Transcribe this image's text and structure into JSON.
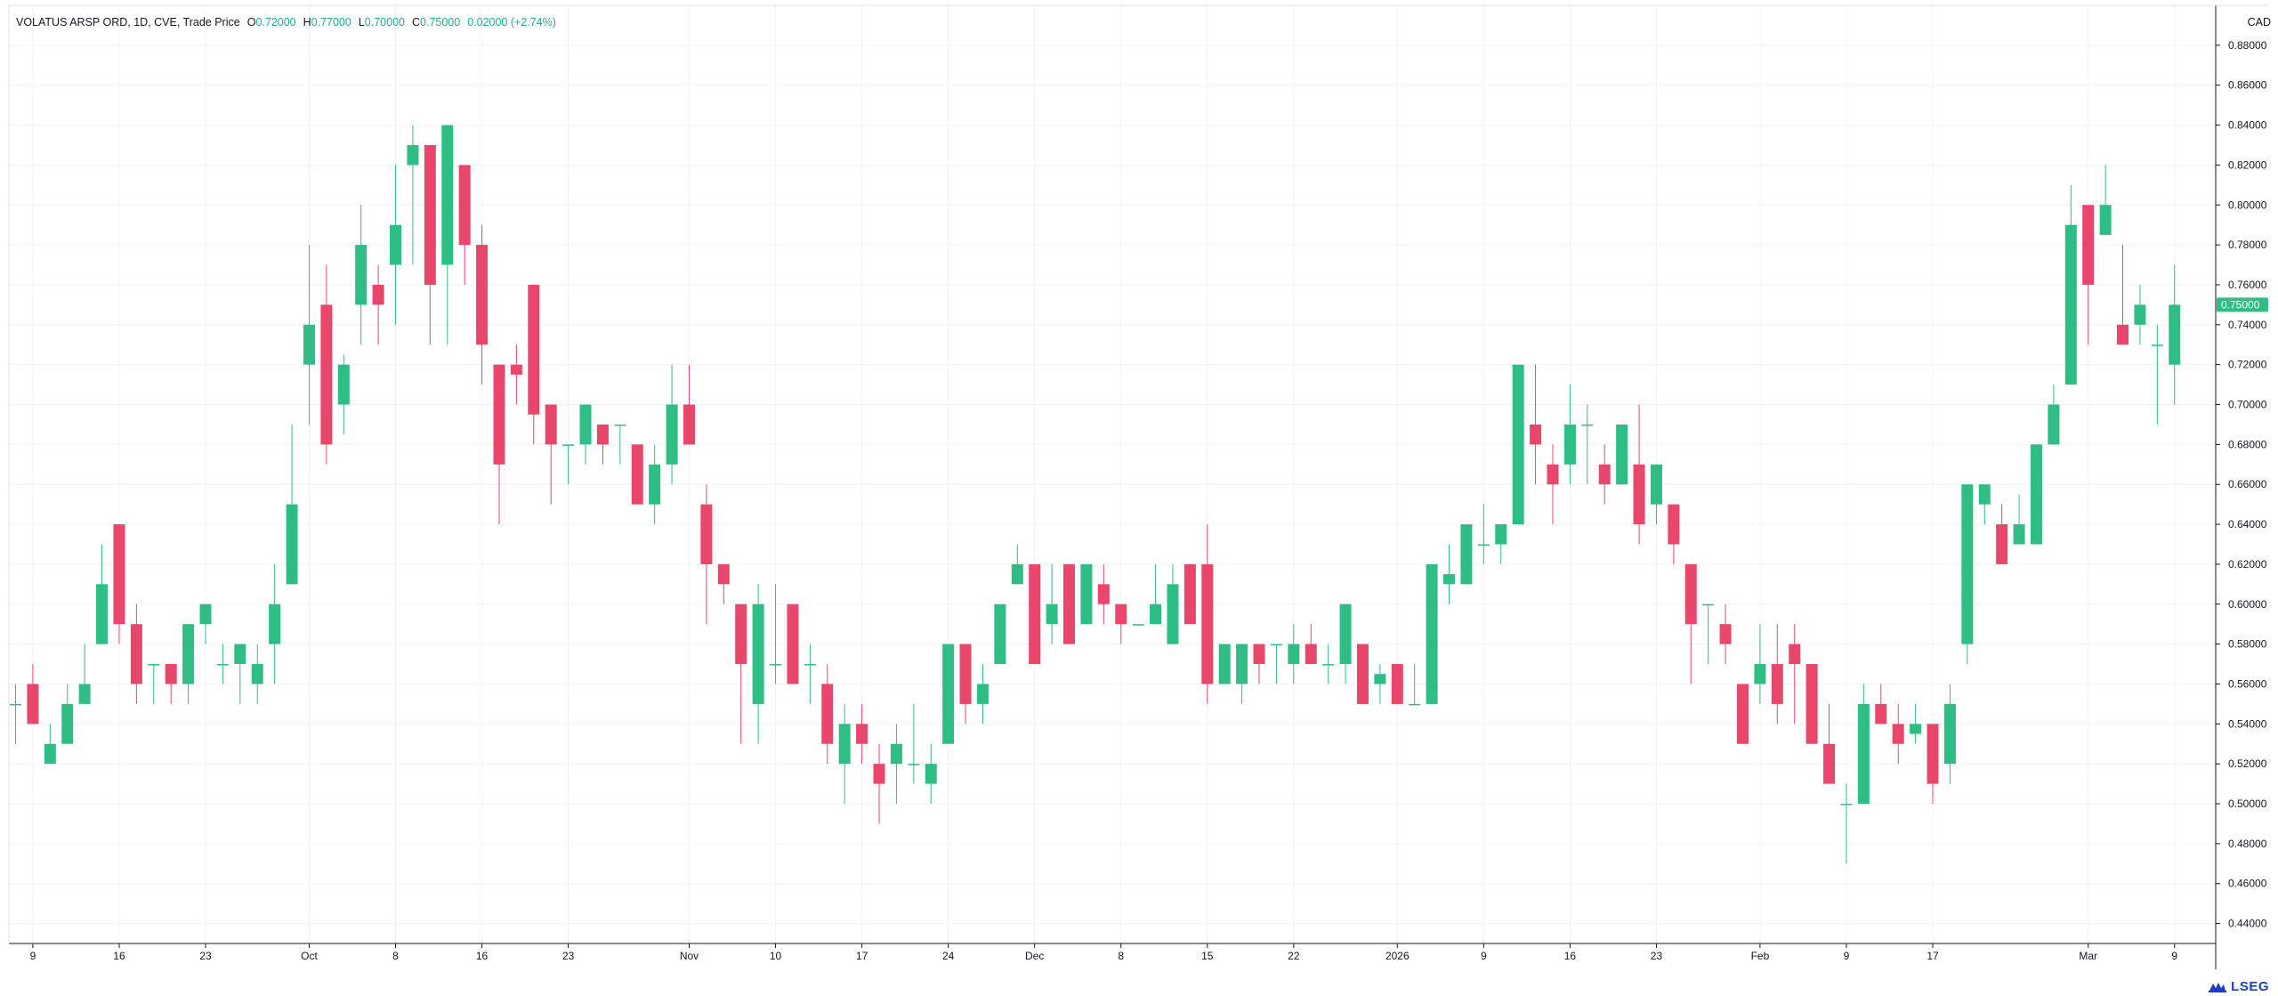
{
  "legend": {
    "symbol": "VOLATUS ARSP ORD, 1D, CVE, Trade Price",
    "open_key": "O",
    "open": "0.72000",
    "high_key": "H",
    "high": "0.77000",
    "low_key": "L",
    "low": "0.70000",
    "close_key": "C",
    "close": "0.75000",
    "change": "0.02000 (+2.74%)"
  },
  "currency": "CAD",
  "logo_text": "LSEG",
  "colors": {
    "up": "#2ebd85",
    "down": "#e8466a",
    "grid": "#f0f3fa",
    "axis": "#131722",
    "price_label_bg": "#2ebd85"
  },
  "chart_data": {
    "type": "candlestick",
    "title": "",
    "ylim": [
      0.43,
      0.9
    ],
    "y_ticks": [
      "0.44000",
      "0.46000",
      "0.48000",
      "0.50000",
      "0.52000",
      "0.54000",
      "0.56000",
      "0.58000",
      "0.60000",
      "0.62000",
      "0.64000",
      "0.66000",
      "0.68000",
      "0.70000",
      "0.72000",
      "0.74000",
      "0.76000",
      "0.78000",
      "0.80000",
      "0.82000",
      "0.84000",
      "0.86000",
      "0.88000"
    ],
    "x_ticks": [
      {
        "label": "9",
        "index": 1
      },
      {
        "label": "16",
        "index": 6
      },
      {
        "label": "23",
        "index": 11
      },
      {
        "label": "Oct",
        "index": 17
      },
      {
        "label": "8",
        "index": 22
      },
      {
        "label": "16",
        "index": 27
      },
      {
        "label": "23",
        "index": 32
      },
      {
        "label": "Nov",
        "index": 39
      },
      {
        "label": "10",
        "index": 44
      },
      {
        "label": "17",
        "index": 49
      },
      {
        "label": "24",
        "index": 54
      },
      {
        "label": "Dec",
        "index": 59
      },
      {
        "label": "8",
        "index": 64
      },
      {
        "label": "15",
        "index": 69
      },
      {
        "label": "22",
        "index": 74
      },
      {
        "label": "2026",
        "index": 80
      },
      {
        "label": "9",
        "index": 85
      },
      {
        "label": "16",
        "index": 90
      },
      {
        "label": "23",
        "index": 95
      },
      {
        "label": "Feb",
        "index": 101
      },
      {
        "label": "9",
        "index": 106
      },
      {
        "label": "17",
        "index": 111
      },
      {
        "label": "Mar",
        "index": 120
      },
      {
        "label": "9",
        "index": 125
      }
    ],
    "last_price": "0.75000",
    "candles": [
      [
        0.55,
        0.56,
        0.53,
        0.55
      ],
      [
        0.56,
        0.57,
        0.54,
        0.54
      ],
      [
        0.52,
        0.54,
        0.52,
        0.53
      ],
      [
        0.53,
        0.56,
        0.53,
        0.55
      ],
      [
        0.55,
        0.58,
        0.55,
        0.56
      ],
      [
        0.58,
        0.63,
        0.58,
        0.61
      ],
      [
        0.64,
        0.64,
        0.58,
        0.59
      ],
      [
        0.59,
        0.6,
        0.55,
        0.56
      ],
      [
        0.57,
        0.57,
        0.55,
        0.57
      ],
      [
        0.57,
        0.57,
        0.55,
        0.56
      ],
      [
        0.56,
        0.59,
        0.55,
        0.59
      ],
      [
        0.59,
        0.6,
        0.58,
        0.6
      ],
      [
        0.57,
        0.58,
        0.56,
        0.57
      ],
      [
        0.57,
        0.58,
        0.55,
        0.58
      ],
      [
        0.56,
        0.58,
        0.55,
        0.57
      ],
      [
        0.58,
        0.62,
        0.56,
        0.6
      ],
      [
        0.61,
        0.69,
        0.61,
        0.65
      ],
      [
        0.72,
        0.78,
        0.69,
        0.74
      ],
      [
        0.75,
        0.77,
        0.67,
        0.68
      ],
      [
        0.7,
        0.725,
        0.685,
        0.72
      ],
      [
        0.75,
        0.8,
        0.73,
        0.78
      ],
      [
        0.76,
        0.77,
        0.73,
        0.75
      ],
      [
        0.77,
        0.82,
        0.74,
        0.79
      ],
      [
        0.82,
        0.84,
        0.77,
        0.83
      ],
      [
        0.83,
        0.83,
        0.73,
        0.76
      ],
      [
        0.77,
        0.84,
        0.73,
        0.84
      ],
      [
        0.82,
        0.82,
        0.76,
        0.78
      ],
      [
        0.78,
        0.79,
        0.71,
        0.73
      ],
      [
        0.72,
        0.72,
        0.64,
        0.67
      ],
      [
        0.72,
        0.73,
        0.7,
        0.715
      ],
      [
        0.76,
        0.76,
        0.68,
        0.695
      ],
      [
        0.7,
        0.7,
        0.65,
        0.68
      ],
      [
        0.68,
        0.68,
        0.66,
        0.68
      ],
      [
        0.68,
        0.7,
        0.67,
        0.7
      ],
      [
        0.69,
        0.69,
        0.67,
        0.68
      ],
      [
        0.69,
        0.69,
        0.67,
        0.69
      ],
      [
        0.68,
        0.68,
        0.65,
        0.65
      ],
      [
        0.65,
        0.68,
        0.64,
        0.67
      ],
      [
        0.67,
        0.72,
        0.66,
        0.7
      ],
      [
        0.7,
        0.72,
        0.68,
        0.68
      ],
      [
        0.65,
        0.66,
        0.59,
        0.62
      ],
      [
        0.62,
        0.62,
        0.6,
        0.61
      ],
      [
        0.6,
        0.6,
        0.53,
        0.57
      ],
      [
        0.55,
        0.61,
        0.53,
        0.6
      ],
      [
        0.57,
        0.61,
        0.56,
        0.57
      ],
      [
        0.6,
        0.6,
        0.56,
        0.56
      ],
      [
        0.57,
        0.58,
        0.55,
        0.57
      ],
      [
        0.56,
        0.57,
        0.52,
        0.53
      ],
      [
        0.52,
        0.55,
        0.5,
        0.54
      ],
      [
        0.54,
        0.55,
        0.52,
        0.53
      ],
      [
        0.52,
        0.53,
        0.49,
        0.51
      ],
      [
        0.52,
        0.54,
        0.5,
        0.53
      ],
      [
        0.52,
        0.55,
        0.51,
        0.52
      ],
      [
        0.51,
        0.53,
        0.5,
        0.52
      ],
      [
        0.53,
        0.58,
        0.53,
        0.58
      ],
      [
        0.58,
        0.58,
        0.54,
        0.55
      ],
      [
        0.55,
        0.57,
        0.54,
        0.56
      ],
      [
        0.57,
        0.6,
        0.57,
        0.6
      ],
      [
        0.61,
        0.63,
        0.61,
        0.62
      ],
      [
        0.62,
        0.62,
        0.57,
        0.57
      ],
      [
        0.59,
        0.62,
        0.58,
        0.6
      ],
      [
        0.62,
        0.62,
        0.58,
        0.58
      ],
      [
        0.59,
        0.62,
        0.59,
        0.62
      ],
      [
        0.61,
        0.62,
        0.59,
        0.6
      ],
      [
        0.6,
        0.6,
        0.58,
        0.59
      ],
      [
        0.59,
        0.59,
        0.59,
        0.59
      ],
      [
        0.59,
        0.62,
        0.59,
        0.6
      ],
      [
        0.58,
        0.62,
        0.58,
        0.61
      ],
      [
        0.62,
        0.62,
        0.59,
        0.59
      ],
      [
        0.62,
        0.64,
        0.55,
        0.56
      ],
      [
        0.56,
        0.58,
        0.56,
        0.58
      ],
      [
        0.56,
        0.58,
        0.55,
        0.58
      ],
      [
        0.58,
        0.58,
        0.56,
        0.57
      ],
      [
        0.58,
        0.58,
        0.56,
        0.58
      ],
      [
        0.57,
        0.59,
        0.56,
        0.58
      ],
      [
        0.58,
        0.59,
        0.57,
        0.57
      ],
      [
        0.57,
        0.58,
        0.56,
        0.57
      ],
      [
        0.57,
        0.6,
        0.56,
        0.6
      ],
      [
        0.58,
        0.58,
        0.55,
        0.55
      ],
      [
        0.56,
        0.57,
        0.55,
        0.565
      ],
      [
        0.57,
        0.57,
        0.55,
        0.55
      ],
      [
        0.55,
        0.57,
        0.55,
        0.55
      ],
      [
        0.55,
        0.62,
        0.55,
        0.62
      ],
      [
        0.61,
        0.63,
        0.6,
        0.615
      ],
      [
        0.61,
        0.64,
        0.61,
        0.64
      ],
      [
        0.63,
        0.65,
        0.62,
        0.63
      ],
      [
        0.63,
        0.64,
        0.62,
        0.64
      ],
      [
        0.64,
        0.72,
        0.64,
        0.72
      ],
      [
        0.69,
        0.72,
        0.66,
        0.68
      ],
      [
        0.67,
        0.68,
        0.64,
        0.66
      ],
      [
        0.67,
        0.71,
        0.66,
        0.69
      ],
      [
        0.69,
        0.7,
        0.66,
        0.69
      ],
      [
        0.67,
        0.68,
        0.65,
        0.66
      ],
      [
        0.66,
        0.69,
        0.66,
        0.69
      ],
      [
        0.67,
        0.7,
        0.63,
        0.64
      ],
      [
        0.65,
        0.67,
        0.64,
        0.67
      ],
      [
        0.65,
        0.65,
        0.62,
        0.63
      ],
      [
        0.62,
        0.62,
        0.56,
        0.59
      ],
      [
        0.6,
        0.6,
        0.57,
        0.6
      ],
      [
        0.59,
        0.6,
        0.57,
        0.58
      ],
      [
        0.56,
        0.56,
        0.53,
        0.53
      ],
      [
        0.56,
        0.59,
        0.55,
        0.57
      ],
      [
        0.57,
        0.59,
        0.54,
        0.55
      ],
      [
        0.58,
        0.59,
        0.54,
        0.57
      ],
      [
        0.57,
        0.57,
        0.53,
        0.53
      ],
      [
        0.53,
        0.55,
        0.51,
        0.51
      ],
      [
        0.5,
        0.51,
        0.47,
        0.5
      ],
      [
        0.5,
        0.56,
        0.5,
        0.55
      ],
      [
        0.55,
        0.56,
        0.54,
        0.54
      ],
      [
        0.54,
        0.55,
        0.52,
        0.53
      ],
      [
        0.535,
        0.55,
        0.53,
        0.54
      ],
      [
        0.54,
        0.54,
        0.5,
        0.51
      ],
      [
        0.52,
        0.56,
        0.51,
        0.55
      ],
      [
        0.58,
        0.66,
        0.57,
        0.66
      ],
      [
        0.65,
        0.66,
        0.64,
        0.66
      ],
      [
        0.64,
        0.65,
        0.62,
        0.62
      ],
      [
        0.63,
        0.655,
        0.63,
        0.64
      ],
      [
        0.63,
        0.68,
        0.63,
        0.68
      ],
      [
        0.68,
        0.71,
        0.68,
        0.7
      ],
      [
        0.71,
        0.81,
        0.71,
        0.79
      ],
      [
        0.8,
        0.8,
        0.73,
        0.76
      ],
      [
        0.785,
        0.82,
        0.785,
        0.8
      ],
      [
        0.74,
        0.78,
        0.73,
        0.73
      ],
      [
        0.74,
        0.76,
        0.73,
        0.75
      ],
      [
        0.73,
        0.74,
        0.69,
        0.73
      ],
      [
        0.72,
        0.77,
        0.7,
        0.75
      ]
    ]
  }
}
